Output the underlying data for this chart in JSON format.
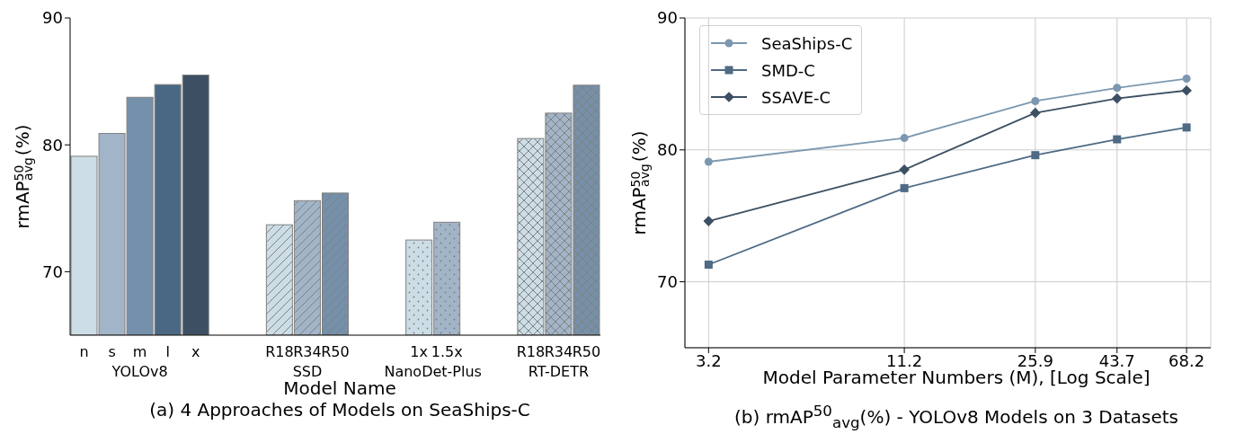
{
  "chart_data": [
    {
      "type": "bar",
      "title": "(a) 4 Approaches of Models on SeaShips-C",
      "xlabel": "Model Name",
      "ylabel": "rmAP$^{50}$$_{avg}$(%)",
      "categories": [
        "n",
        "s",
        "m",
        "l",
        "x",
        null,
        null,
        "R18",
        "R34",
        "R50",
        null,
        null,
        "1x",
        "1.5x",
        null,
        null,
        "R18",
        "R34",
        "R50"
      ],
      "series": [
        {
          "name": "YOLOv8",
          "values": [
            79.1,
            80.9,
            83.75,
            84.75,
            85.5,
            null,
            null,
            null,
            null,
            null,
            null,
            null,
            null,
            null,
            null,
            null,
            null,
            null,
            null
          ],
          "colors": [
            "#ccdde6",
            "#a2b4c8",
            "#7590aa",
            "#4a6883",
            "#3d5063",
            null,
            null,
            null,
            null,
            null,
            null,
            null,
            null,
            null,
            null,
            null,
            null,
            null,
            null
          ]
        },
        {
          "name": "SSD",
          "values": [
            null,
            null,
            null,
            null,
            null,
            null,
            null,
            73.7,
            75.6,
            76.2,
            null,
            null,
            null,
            null,
            null,
            null,
            null,
            null,
            null
          ],
          "colors": [
            null,
            null,
            null,
            null,
            null,
            null,
            null,
            "#ccdde6",
            "#a2b4c8",
            "#7590aa",
            null,
            null,
            null,
            null,
            null,
            null,
            null,
            null,
            null
          ]
        },
        {
          "name": "NanoDet-Plus",
          "values": [
            null,
            null,
            null,
            null,
            null,
            null,
            null,
            null,
            null,
            null,
            null,
            null,
            72.5,
            73.9,
            null,
            null,
            null,
            null,
            null
          ],
          "colors": [
            null,
            null,
            null,
            null,
            null,
            null,
            null,
            null,
            null,
            null,
            null,
            null,
            "#ccdde6",
            "#a2b4c8",
            null,
            null,
            null,
            null,
            null
          ]
        },
        {
          "name": "RT-DETR",
          "values": [
            null,
            null,
            null,
            null,
            null,
            null,
            null,
            null,
            null,
            null,
            null,
            null,
            null,
            null,
            null,
            null,
            80.5,
            82.5,
            84.7
          ],
          "colors": [
            null,
            null,
            null,
            null,
            null,
            null,
            null,
            null,
            null,
            null,
            null,
            null,
            null,
            null,
            null,
            null,
            "#ccdde6",
            "#a2b4c8",
            "#7590aa"
          ]
        }
      ],
      "ylim": [
        65,
        90
      ],
      "yticks": [
        70,
        80,
        90
      ],
      "grid": false
    },
    {
      "type": "line",
      "title": "(b) rmAP$^{50}$$_{avg}$(%) - YOLOv8 Models on 3 Datasets",
      "xlabel": "Model Parameter Numbers (M), [Log Scale]",
      "ylabel": "rmAP$^{50}$$_{avg}$(%)",
      "x": [
        3.2,
        11.2,
        25.9,
        43.7,
        68.2
      ],
      "series": [
        {
          "name": "SeaShips-C",
          "color": "#7c98b0",
          "marker": "circle",
          "values": [
            79.1,
            80.9,
            83.7,
            84.7,
            85.4
          ]
        },
        {
          "name": "SMD-C",
          "color": "#4e6a85",
          "marker": "square",
          "values": [
            71.3,
            77.1,
            79.6,
            80.8,
            81.7
          ]
        },
        {
          "name": "SSAVE-C",
          "color": "#3d5063",
          "marker": "diamond",
          "values": [
            74.6,
            78.5,
            82.8,
            83.9,
            84.5
          ]
        }
      ],
      "log": "x",
      "xlim": [
        2.75,
        79.6
      ],
      "xticks": [
        3.2,
        11.2,
        25.9,
        43.7,
        68.2
      ],
      "ylim": [
        65,
        90
      ],
      "yticks": [
        70,
        80,
        90
      ],
      "grid": true,
      "legend": "top left",
      "line_style": "solid"
    }
  ]
}
